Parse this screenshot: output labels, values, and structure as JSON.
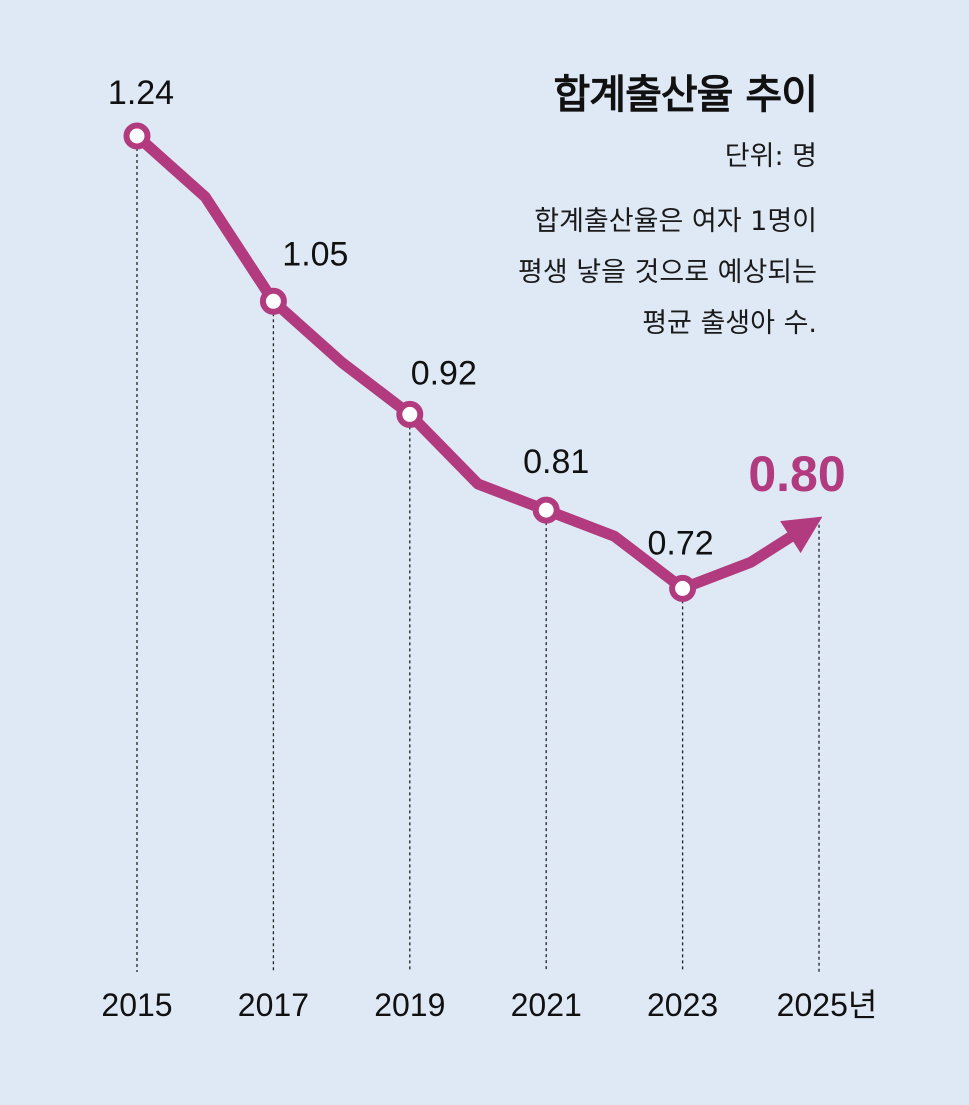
{
  "chart_data": {
    "type": "line",
    "title": "합계출산율 추이",
    "unit_label": "단위: 명",
    "note_lines": [
      "합계출산율은 여자 1명이",
      "평생 낳을 것으로 예상되는",
      "평균 출생아 수."
    ],
    "x": [
      2015,
      2016,
      2017,
      2018,
      2019,
      2020,
      2021,
      2022,
      2023,
      2024,
      2025
    ],
    "values": [
      1.24,
      1.17,
      1.05,
      0.98,
      0.92,
      0.84,
      0.81,
      0.78,
      0.72,
      0.75,
      0.8
    ],
    "labeled_points": [
      {
        "x": 2015,
        "value": 1.24,
        "label": "1.24"
      },
      {
        "x": 2017,
        "value": 1.05,
        "label": "1.05"
      },
      {
        "x": 2019,
        "value": 0.92,
        "label": "0.92"
      },
      {
        "x": 2021,
        "value": 0.81,
        "label": "0.81"
      },
      {
        "x": 2023,
        "value": 0.72,
        "label": "0.72"
      }
    ],
    "highlight": {
      "x": 2025,
      "value": 0.8,
      "label": "0.80"
    },
    "x_tick_labels": [
      "2015",
      "2017",
      "2019",
      "2021",
      "2023",
      "2025년"
    ],
    "ylim": [
      0.6,
      1.24
    ],
    "grid": false,
    "colors": {
      "line": "#b23a7e",
      "background": "#dfe9f5",
      "marker_fill": "#ffffff"
    }
  }
}
